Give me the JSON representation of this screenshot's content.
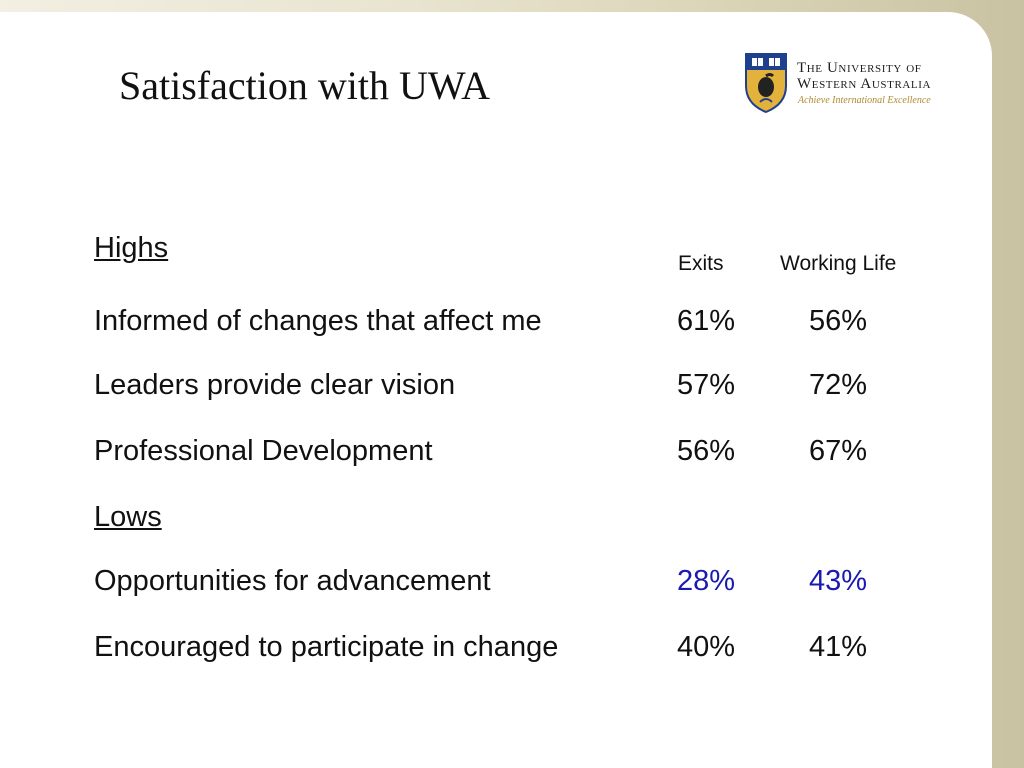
{
  "slide": {
    "title": "Satisfaction with UWA",
    "logo": {
      "line1": "The University of",
      "line2": "Western Australia",
      "motto": "Achieve International Excellence"
    },
    "table": {
      "highs_heading": "Highs",
      "lows_heading": "Lows",
      "col_exits": "Exits",
      "col_working_life": "Working Life",
      "highs": [
        {
          "label": "Informed of changes that affect me",
          "exits": "61%",
          "working_life": "56%"
        },
        {
          "label": "Leaders provide clear vision",
          "exits": "57%",
          "working_life": "72%"
        },
        {
          "label": "Professional Development",
          "exits": "56%",
          "working_life": "67%"
        }
      ],
      "lows": [
        {
          "label": "Opportunities for advancement",
          "exits": "28%",
          "working_life": "43%"
        },
        {
          "label": "Encouraged to participate in change",
          "exits": "40%",
          "working_life": "41%"
        }
      ]
    },
    "colors": {
      "highlight": "#1a1ab0",
      "logo_gold": "#b08a2e",
      "crest_blue": "#1f3f8f",
      "crest_gold": "#e2b23a"
    }
  }
}
